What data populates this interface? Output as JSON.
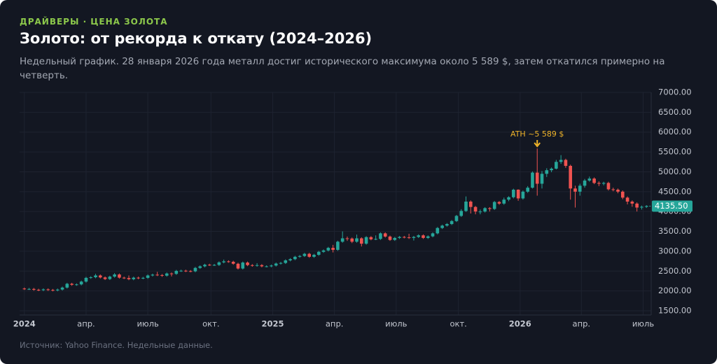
{
  "chart_data": {
    "type": "candlestick",
    "kicker": "ДРАЙВЕРЫ · ЦЕНА ЗОЛОТА",
    "title": "Золото: от рекорда к откату (2024–2026)",
    "subtitle": "Недельный график. 28 января 2026 года металл достиг исторического максимума около 5 589 $, затем откатился примерно на четверть.",
    "source": "Источник: Yahoo Finance. Недельные данные.",
    "up_color": "#26a69a",
    "down_color": "#ef5350",
    "grid": true,
    "xlim": [
      -1,
      132
    ],
    "xticks": [
      {
        "value": 0,
        "label": "2024"
      },
      {
        "value": 13,
        "label": "апр."
      },
      {
        "value": 26,
        "label": "июль"
      },
      {
        "value": 39.3,
        "label": "окт."
      },
      {
        "value": 52.3,
        "label": "2025"
      },
      {
        "value": 65.3,
        "label": "апр."
      },
      {
        "value": 78.3,
        "label": "июль"
      },
      {
        "value": 91.4,
        "label": "окт."
      },
      {
        "value": 104.4,
        "label": "2026"
      },
      {
        "value": 117.3,
        "label": "апр."
      },
      {
        "value": 130.3,
        "label": "июль"
      }
    ],
    "ylim": [
      1500,
      7000
    ],
    "yticks": [
      {
        "value": 1500,
        "label": "1500.00"
      },
      {
        "value": 2000,
        "label": "2000.00"
      },
      {
        "value": 2500,
        "label": "2500.00"
      },
      {
        "value": 3000,
        "label": "3000.00"
      },
      {
        "value": 3500,
        "label": "3500.00"
      },
      {
        "value": 4000,
        "label": "4000.00"
      },
      {
        "value": 4500,
        "label": "4500.00"
      },
      {
        "value": 5000,
        "label": "5000.00"
      },
      {
        "value": 5500,
        "label": "5500.00"
      },
      {
        "value": 6000,
        "label": "6000.00"
      },
      {
        "value": 6500,
        "label": "6500.00"
      },
      {
        "value": 7000,
        "label": "7000.00"
      }
    ],
    "open": [
      2060,
      2050,
      2050,
      2030,
      2020,
      2040,
      2025,
      2015,
      2035,
      2085,
      2180,
      2155,
      2165,
      2235,
      2330,
      2345,
      2390,
      2340,
      2300,
      2360,
      2415,
      2335,
      2325,
      2295,
      2335,
      2320,
      2330,
      2390,
      2410,
      2400,
      2385,
      2440,
      2430,
      2505,
      2510,
      2500,
      2495,
      2580,
      2620,
      2660,
      2655,
      2655,
      2720,
      2745,
      2735,
      2685,
      2565,
      2715,
      2650,
      2635,
      2650,
      2620,
      2620,
      2640,
      2690,
      2705,
      2770,
      2800,
      2860,
      2880,
      2935,
      2860,
      2910,
      2985,
      3020,
      3085,
      3035,
      3240,
      3325,
      3320,
      3240,
      3325,
      3190,
      3355,
      3300,
      3310,
      3450,
      3370,
      3285,
      3335,
      3360,
      3350,
      3335,
      3360,
      3400,
      3335,
      3375,
      3450,
      3585,
      3645,
      3685,
      3760,
      3890,
      4015,
      4250,
      4115,
      4000,
      4000,
      4085,
      4065,
      4240,
      4200,
      4300,
      4360,
      4550,
      4330,
      4500,
      4600,
      4980,
      4700,
      4950,
      5040,
      5080,
      5250,
      5300,
      5150,
      4580,
      4500,
      4650,
      4780,
      4830,
      4720,
      4700,
      4720,
      4560,
      4550,
      4500,
      4350,
      4250,
      4200,
      4100,
      4120
    ],
    "high": [
      2085,
      2075,
      2075,
      2055,
      2065,
      2065,
      2050,
      2060,
      2110,
      2205,
      2205,
      2190,
      2260,
      2355,
      2370,
      2430,
      2415,
      2365,
      2385,
      2450,
      2440,
      2360,
      2390,
      2360,
      2360,
      2355,
      2415,
      2435,
      2480,
      2425,
      2465,
      2465,
      2530,
      2535,
      2535,
      2525,
      2605,
      2645,
      2685,
      2685,
      2680,
      2745,
      2790,
      2770,
      2760,
      2710,
      2740,
      2740,
      2675,
      2700,
      2675,
      2645,
      2665,
      2715,
      2730,
      2795,
      2825,
      2885,
      2905,
      2960,
      2960,
      2935,
      3010,
      3045,
      3110,
      3160,
      3265,
      3500,
      3370,
      3345,
      3420,
      3350,
      3380,
      3380,
      3400,
      3475,
      3475,
      3395,
      3360,
      3385,
      3385,
      3440,
      3385,
      3425,
      3425,
      3400,
      3475,
      3610,
      3670,
      3710,
      3785,
      3915,
      4060,
      4380,
      4280,
      4140,
      4050,
      4110,
      4110,
      4265,
      4265,
      4350,
      4385,
      4575,
      4560,
      4530,
      4640,
      5010,
      5589,
      5020,
      5090,
      5110,
      5300,
      5420,
      5330,
      5180,
      4650,
      4700,
      4820,
      4880,
      4860,
      4760,
      4750,
      4750,
      4600,
      4580,
      4530,
      4380,
      4280,
      4230,
      4150,
      4160
    ],
    "low": [
      2025,
      2025,
      2005,
      1995,
      1995,
      2000,
      1990,
      1990,
      2010,
      2060,
      2130,
      2130,
      2140,
      2210,
      2305,
      2320,
      2315,
      2275,
      2275,
      2335,
      2310,
      2300,
      2270,
      2270,
      2295,
      2295,
      2305,
      2365,
      2375,
      2355,
      2360,
      2365,
      2405,
      2480,
      2475,
      2470,
      2470,
      2555,
      2595,
      2630,
      2630,
      2630,
      2695,
      2710,
      2660,
      2540,
      2540,
      2625,
      2610,
      2610,
      2595,
      2595,
      2595,
      2615,
      2665,
      2680,
      2745,
      2775,
      2835,
      2855,
      2835,
      2835,
      2885,
      2960,
      2995,
      2970,
      3010,
      3215,
      3260,
      3205,
      3215,
      3120,
      3165,
      3275,
      3280,
      3285,
      3345,
      3260,
      3260,
      3310,
      3325,
      3310,
      3270,
      3335,
      3310,
      3310,
      3350,
      3425,
      3560,
      3620,
      3660,
      3735,
      3865,
      3990,
      3950,
      3930,
      3930,
      3975,
      4000,
      4040,
      4170,
      4170,
      4260,
      4330,
      4270,
      4300,
      4470,
      4580,
      4400,
      4580,
      4870,
      4990,
      5060,
      5200,
      5100,
      4300,
      4100,
      4400,
      4600,
      4750,
      4690,
      4640,
      4660,
      4530,
      4510,
      4460,
      4310,
      4180,
      4120,
      4000,
      4050,
      4090
    ],
    "close": [
      2050,
      2050,
      2030,
      2020,
      2040,
      2025,
      2015,
      2035,
      2085,
      2180,
      2155,
      2165,
      2235,
      2330,
      2345,
      2390,
      2340,
      2300,
      2360,
      2415,
      2335,
      2325,
      2295,
      2335,
      2320,
      2330,
      2390,
      2410,
      2400,
      2385,
      2440,
      2430,
      2505,
      2510,
      2500,
      2495,
      2580,
      2620,
      2660,
      2655,
      2655,
      2720,
      2745,
      2735,
      2685,
      2565,
      2715,
      2650,
      2635,
      2650,
      2620,
      2620,
      2640,
      2690,
      2705,
      2770,
      2800,
      2860,
      2880,
      2935,
      2860,
      2910,
      2985,
      3020,
      3085,
      3035,
      3240,
      3325,
      3320,
      3240,
      3325,
      3190,
      3355,
      3300,
      3310,
      3450,
      3370,
      3285,
      3335,
      3360,
      3350,
      3335,
      3360,
      3400,
      3335,
      3375,
      3450,
      3585,
      3645,
      3685,
      3760,
      3890,
      4015,
      4250,
      4115,
      4000,
      4000,
      4085,
      4065,
      4240,
      4200,
      4300,
      4360,
      4550,
      4330,
      4500,
      4600,
      4980,
      4700,
      4950,
      5040,
      5080,
      5250,
      5300,
      5150,
      4580,
      4500,
      4650,
      4780,
      4830,
      4720,
      4700,
      4720,
      4560,
      4550,
      4500,
      4350,
      4250,
      4200,
      4100,
      4120,
      4135.5
    ],
    "annotation": {
      "text": "ATH ~5 589 $",
      "x": 108,
      "y": 5589,
      "color": "#f0b429"
    },
    "last_price": {
      "value": 4135.5,
      "label": "4135.50",
      "color": "#26a69a"
    }
  }
}
